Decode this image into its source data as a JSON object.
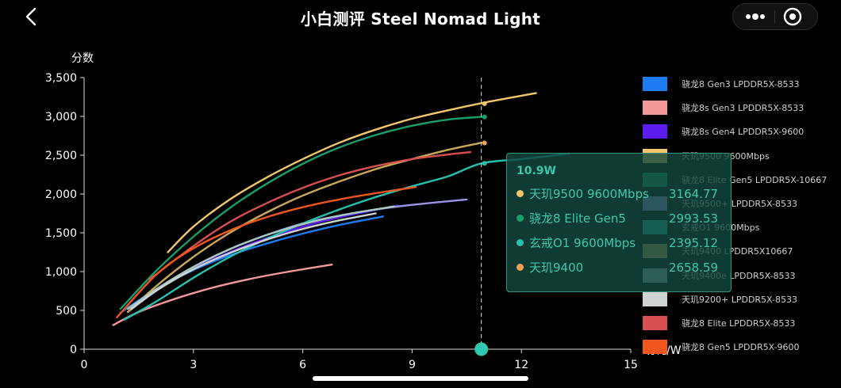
{
  "header": {
    "title": "小白测评 Steel Nomad Light"
  },
  "chart_data": {
    "type": "line",
    "ylabel": "分数",
    "xlabel": "功耗/W",
    "xlim": [
      0,
      15
    ],
    "ylim": [
      0,
      3500
    ],
    "xticks": [
      "0",
      "3",
      "6",
      "9",
      "12",
      "15"
    ],
    "yticks": [
      "0",
      "500",
      "1,000",
      "1,500",
      "2,000",
      "2,500",
      "3,000",
      "3,500"
    ],
    "legend_position": "right",
    "series": [
      {
        "name": "骁龙8 Gen3 LPDDR5X-8533",
        "color": "#1e7cf2",
        "x": [
          1.0,
          2,
          3,
          4,
          5,
          6,
          7,
          8.2
        ],
        "y": [
          470,
          780,
          1020,
          1210,
          1360,
          1490,
          1600,
          1710
        ]
      },
      {
        "name": "骁龙8s Gen3 LPDDR5X-8533",
        "color": "#f29a9a",
        "x": [
          0.8,
          1.5,
          2.5,
          3.5,
          4.5,
          5.5,
          6.8
        ],
        "y": [
          310,
          480,
          650,
          790,
          900,
          990,
          1090
        ]
      },
      {
        "name": "骁龙8s Gen4 LPDDR5X-9600",
        "color": "#5b1cf0",
        "x": [
          1.3,
          2,
          3,
          4,
          5,
          6,
          7,
          8.6
        ],
        "y": [
          520,
          760,
          1040,
          1250,
          1430,
          1580,
          1700,
          1850
        ]
      },
      {
        "name": "天玑9500 9600Mbps",
        "color": "#f2c66d",
        "x": [
          2.3,
          3,
          4,
          5,
          6,
          7,
          8,
          9,
          10,
          11,
          12.4
        ],
        "y": [
          1250,
          1580,
          1930,
          2210,
          2450,
          2660,
          2830,
          2970,
          3080,
          3180,
          3300
        ]
      },
      {
        "name": "骁龙8 Elite Gen5 LPDDR5X-10667",
        "color": "#1a9e6a",
        "x": [
          1.0,
          2,
          3,
          4,
          5,
          6,
          7,
          8,
          9,
          10,
          10.9
        ],
        "y": [
          520,
          1020,
          1450,
          1820,
          2130,
          2390,
          2600,
          2760,
          2880,
          2960,
          2994
        ]
      },
      {
        "name": "天玑9500+ LPDDR5X-8533",
        "color": "#9a94e8",
        "x": [
          1.2,
          2,
          3,
          4,
          5,
          6,
          7,
          8,
          9,
          10.5
        ],
        "y": [
          480,
          760,
          1060,
          1290,
          1470,
          1620,
          1720,
          1800,
          1860,
          1930
        ]
      },
      {
        "name": "玄戒O1 9600Mbps",
        "color": "#27bfae",
        "x": [
          1.1,
          2,
          3,
          4,
          5,
          6,
          7,
          8,
          9,
          10,
          10.9,
          12,
          13.3
        ],
        "y": [
          380,
          620,
          920,
          1190,
          1420,
          1620,
          1800,
          1960,
          2100,
          2230,
          2395,
          2450,
          2520
        ]
      },
      {
        "name": "天玑9400 LPDDR5X10667",
        "color": "#c9a85a",
        "x": [
          1.2,
          2,
          3,
          4,
          5,
          6,
          7,
          8,
          9,
          10,
          10.9
        ],
        "y": [
          480,
          820,
          1190,
          1500,
          1760,
          1980,
          2160,
          2320,
          2450,
          2570,
          2660
        ]
      },
      {
        "name": "天玑9400e LPDDR5X-8533",
        "color": "#a7c8bf",
        "x": [
          1.2,
          2,
          3,
          4,
          5,
          6,
          7,
          8.5
        ],
        "y": [
          520,
          780,
          1060,
          1290,
          1470,
          1610,
          1720,
          1840
        ]
      },
      {
        "name": "天玑9200+ LPDDR5X-8533",
        "color": "#cdd4d2",
        "x": [
          1.3,
          2,
          3,
          4,
          5,
          6,
          7,
          8
        ],
        "y": [
          520,
          760,
          1030,
          1240,
          1410,
          1550,
          1660,
          1750
        ]
      },
      {
        "name": "骁龙8 Elite LPDDR5X-8533",
        "color": "#d84f4f",
        "x": [
          1.8,
          3,
          4,
          5,
          6,
          7,
          8,
          9,
          10,
          10.6
        ],
        "y": [
          900,
          1330,
          1640,
          1880,
          2080,
          2240,
          2360,
          2450,
          2510,
          2540
        ]
      },
      {
        "name": "骁龙8 Gen5 LPDDR5X-9600",
        "color": "#f0561d",
        "x": [
          0.9,
          2,
          3,
          4,
          5,
          6,
          7,
          8,
          9.1
        ],
        "y": [
          410,
          970,
          1300,
          1530,
          1700,
          1830,
          1930,
          2010,
          2090
        ]
      }
    ],
    "cursor_x": 10.9,
    "tooltip": {
      "title": "10.9W",
      "rows": [
        {
          "name": "天玑9500 9600Mbps",
          "value": "3164.77",
          "color": "#f2c66d"
        },
        {
          "name": "骁龙8 Elite Gen5",
          "value": "2993.53",
          "color": "#1a9e6a"
        },
        {
          "name": "玄戒O1 9600Mbps",
          "value": "2395.12",
          "color": "#27bfae"
        },
        {
          "name": "天玑9400",
          "value": "2658.59",
          "color": "#f0a050"
        }
      ]
    }
  }
}
